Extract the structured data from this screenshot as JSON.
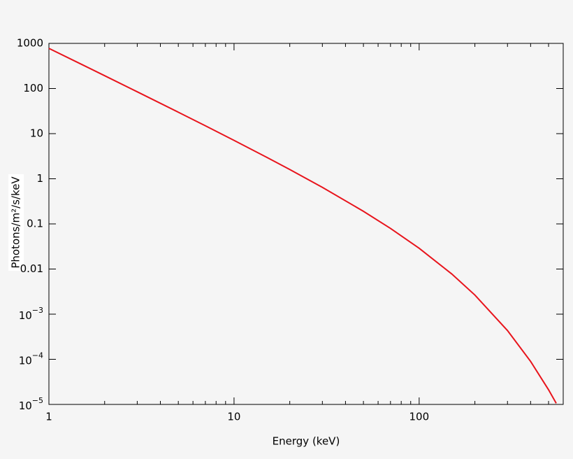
{
  "chart_data": {
    "type": "line",
    "x_label": "Energy (keV)",
    "y_label": "Photons/m²/s/keV",
    "x": [
      1,
      1.5,
      2,
      3,
      5,
      7,
      10,
      15,
      20,
      30,
      50,
      70,
      100,
      150,
      200,
      300,
      400,
      500,
      550
    ],
    "values": [
      776.2,
      343.2,
      192.1,
      84.54,
      29.83,
      14.92,
      7.094,
      2.999,
      1.605,
      0.6453,
      0.1902,
      0.07945,
      0.02884,
      0.007775,
      0.002653,
      0.0004337,
      8.975e-05,
      2.113e-05,
      1.059e-05
    ],
    "color": "#e8141c",
    "xlog": true,
    "ylog": true,
    "xlim": [
      1,
      600
    ],
    "ylim": [
      1e-05,
      1000
    ],
    "xticks": [
      1,
      10,
      100
    ],
    "xminor_ticks": [
      2,
      3,
      4,
      5,
      6,
      7,
      8,
      9,
      20,
      30,
      40,
      50,
      60,
      70,
      80,
      90,
      200,
      300,
      400,
      500
    ],
    "yticks": [
      1000,
      100,
      10,
      1,
      0.1,
      0.01,
      {
        "value": 0.001,
        "label": "10",
        "exponent": "−3"
      },
      {
        "value": 0.0001,
        "label": "10",
        "exponent": "−4"
      },
      {
        "value": 1e-05,
        "label": "10",
        "exponent": "−5"
      }
    ]
  }
}
